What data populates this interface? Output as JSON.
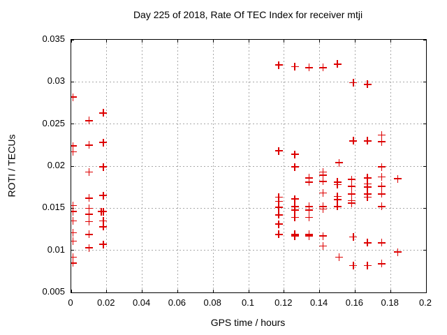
{
  "chart_data": {
    "type": "scatter",
    "title": "Day 225 of 2018, Rate Of TEC Index for receiver mtji",
    "xlabel": "GPS time / hours",
    "ylabel": "ROTI / TECUs",
    "xlim": [
      0,
      0.2
    ],
    "ylim": [
      0.005,
      0.035
    ],
    "grid": true,
    "legend_position": "none",
    "marker": "plus",
    "marker_color": "#dd0000",
    "grid_color": "#a8a8a8",
    "xticks": [
      {
        "v": 0,
        "label": "0"
      },
      {
        "v": 0.02,
        "label": "0.02"
      },
      {
        "v": 0.04,
        "label": "0.04"
      },
      {
        "v": 0.06,
        "label": "0.06"
      },
      {
        "v": 0.08,
        "label": "0.08"
      },
      {
        "v": 0.1,
        "label": "0.1"
      },
      {
        "v": 0.12,
        "label": "0.12"
      },
      {
        "v": 0.14,
        "label": "0.14"
      },
      {
        "v": 0.16,
        "label": "0.16"
      },
      {
        "v": 0.18,
        "label": "0.18"
      },
      {
        "v": 0.2,
        "label": "0.2"
      }
    ],
    "yticks": [
      {
        "v": 0.005,
        "label": "0.005"
      },
      {
        "v": 0.01,
        "label": "0.01"
      },
      {
        "v": 0.015,
        "label": "0.015"
      },
      {
        "v": 0.02,
        "label": "0.02"
      },
      {
        "v": 0.025,
        "label": "0.025"
      },
      {
        "v": 0.03,
        "label": "0.03"
      },
      {
        "v": 0.035,
        "label": "0.035"
      }
    ],
    "series": [
      {
        "name": "ROTI",
        "points": [
          [
            0.001,
            0.0282
          ],
          [
            0.001,
            0.0224
          ],
          [
            0.001,
            0.0217
          ],
          [
            0.001,
            0.0153
          ],
          [
            0.001,
            0.0146
          ],
          [
            0.001,
            0.0135
          ],
          [
            0.001,
            0.0121
          ],
          [
            0.001,
            0.0111
          ],
          [
            0.001,
            0.0092
          ],
          [
            0.001,
            0.0085
          ],
          [
            0.01,
            0.0254
          ],
          [
            0.01,
            0.0225
          ],
          [
            0.01,
            0.0193
          ],
          [
            0.01,
            0.0162
          ],
          [
            0.01,
            0.015
          ],
          [
            0.01,
            0.0143
          ],
          [
            0.01,
            0.0134
          ],
          [
            0.01,
            0.0119
          ],
          [
            0.01,
            0.0103
          ],
          [
            0.017,
            0.0146
          ],
          [
            0.018,
            0.0263
          ],
          [
            0.018,
            0.0228
          ],
          [
            0.018,
            0.0199
          ],
          [
            0.018,
            0.0165
          ],
          [
            0.018,
            0.0146
          ],
          [
            0.018,
            0.0135
          ],
          [
            0.018,
            0.0128
          ],
          [
            0.018,
            0.0107
          ],
          [
            0.117,
            0.032
          ],
          [
            0.117,
            0.0218
          ],
          [
            0.117,
            0.0163
          ],
          [
            0.117,
            0.0158
          ],
          [
            0.117,
            0.0151
          ],
          [
            0.117,
            0.0142
          ],
          [
            0.117,
            0.0131
          ],
          [
            0.117,
            0.0119
          ],
          [
            0.126,
            0.0318
          ],
          [
            0.126,
            0.0214
          ],
          [
            0.126,
            0.0199
          ],
          [
            0.126,
            0.0161
          ],
          [
            0.126,
            0.0152
          ],
          [
            0.126,
            0.0148
          ],
          [
            0.126,
            0.0139
          ],
          [
            0.126,
            0.0119
          ],
          [
            0.126,
            0.0117
          ],
          [
            0.134,
            0.0317
          ],
          [
            0.134,
            0.0186
          ],
          [
            0.134,
            0.0181
          ],
          [
            0.134,
            0.0152
          ],
          [
            0.134,
            0.0148
          ],
          [
            0.134,
            0.0139
          ],
          [
            0.134,
            0.0119
          ],
          [
            0.134,
            0.0117
          ],
          [
            0.142,
            0.0317
          ],
          [
            0.142,
            0.0193
          ],
          [
            0.142,
            0.0189
          ],
          [
            0.142,
            0.0182
          ],
          [
            0.142,
            0.0168
          ],
          [
            0.142,
            0.0152
          ],
          [
            0.142,
            0.0149
          ],
          [
            0.142,
            0.0117
          ],
          [
            0.142,
            0.0105
          ],
          [
            0.15,
            0.0321
          ],
          [
            0.151,
            0.0204
          ],
          [
            0.15,
            0.0181
          ],
          [
            0.15,
            0.0178
          ],
          [
            0.15,
            0.0164
          ],
          [
            0.15,
            0.016
          ],
          [
            0.15,
            0.0152
          ],
          [
            0.151,
            0.0092
          ],
          [
            0.159,
            0.0299
          ],
          [
            0.159,
            0.023
          ],
          [
            0.158,
            0.0184
          ],
          [
            0.158,
            0.0176
          ],
          [
            0.158,
            0.0167
          ],
          [
            0.158,
            0.0159
          ],
          [
            0.158,
            0.0156
          ],
          [
            0.159,
            0.0116
          ],
          [
            0.159,
            0.0082
          ],
          [
            0.167,
            0.0297
          ],
          [
            0.167,
            0.023
          ],
          [
            0.167,
            0.0186
          ],
          [
            0.167,
            0.0179
          ],
          [
            0.167,
            0.0175
          ],
          [
            0.167,
            0.0167
          ],
          [
            0.167,
            0.0163
          ],
          [
            0.167,
            0.0109
          ],
          [
            0.167,
            0.0082
          ],
          [
            0.175,
            0.0237
          ],
          [
            0.175,
            0.0229
          ],
          [
            0.175,
            0.0199
          ],
          [
            0.175,
            0.0187
          ],
          [
            0.175,
            0.0176
          ],
          [
            0.175,
            0.0167
          ],
          [
            0.175,
            0.0152
          ],
          [
            0.175,
            0.0109
          ],
          [
            0.175,
            0.0084
          ],
          [
            0.184,
            0.0185
          ],
          [
            0.184,
            0.0098
          ]
        ]
      }
    ]
  }
}
